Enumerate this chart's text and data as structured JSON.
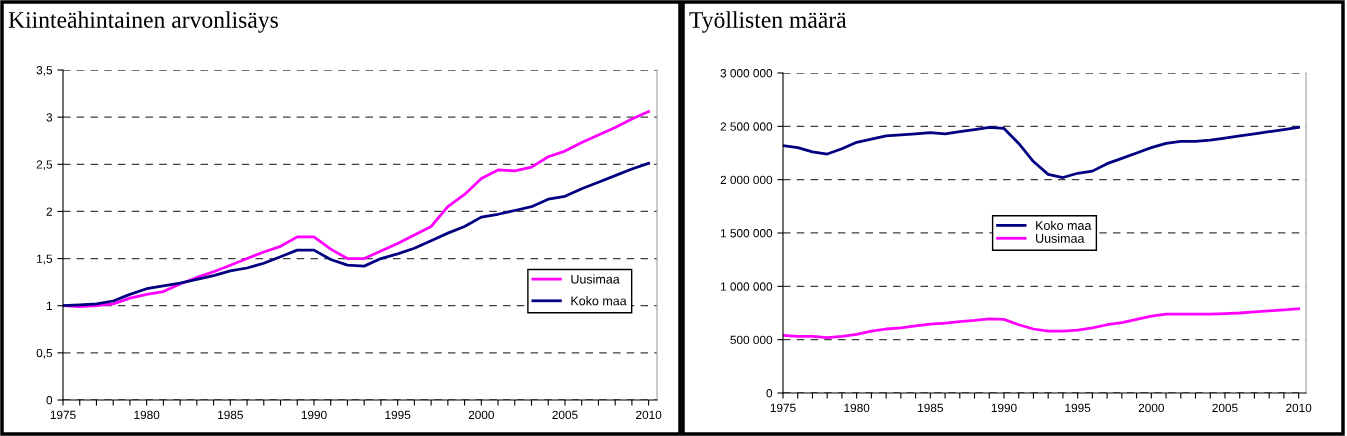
{
  "chart_data": [
    {
      "type": "line",
      "title": "Kiinteähintainen arvonlisäys",
      "categories": [
        "1975",
        null,
        null,
        null,
        null,
        "1980",
        null,
        null,
        null,
        null,
        "1985",
        null,
        null,
        null,
        null,
        "1990",
        null,
        null,
        null,
        null,
        "1995",
        null,
        null,
        null,
        null,
        "2000",
        null,
        null,
        null,
        null,
        "2005",
        null,
        null,
        null,
        null,
        "2010"
      ],
      "series": [
        {
          "name": "Uusimaa",
          "color": "#ff00ff",
          "values": [
            1.0,
            0.99,
            1.0,
            1.02,
            1.08,
            1.12,
            1.15,
            1.23,
            1.3,
            1.36,
            1.43,
            1.5,
            1.57,
            1.63,
            1.73,
            1.73,
            1.6,
            1.5,
            1.5,
            1.58,
            1.66,
            1.75,
            1.84,
            2.05,
            2.18,
            2.35,
            2.44,
            2.43,
            2.47,
            2.58,
            2.64,
            2.73,
            2.81,
            2.89,
            2.98,
            3.06
          ]
        },
        {
          "name": "Koko maa",
          "color": "#000080",
          "values": [
            1.0,
            1.01,
            1.02,
            1.05,
            1.12,
            1.18,
            1.21,
            1.24,
            1.28,
            1.32,
            1.37,
            1.4,
            1.45,
            1.52,
            1.59,
            1.59,
            1.49,
            1.43,
            1.42,
            1.5,
            1.55,
            1.61,
            1.69,
            1.77,
            1.84,
            1.94,
            1.97,
            2.01,
            2.05,
            2.13,
            2.16,
            2.24,
            2.31,
            2.38,
            2.45,
            2.51
          ]
        }
      ],
      "ylim": [
        0,
        3.5
      ],
      "yticks": [
        0,
        {
          "value": 0.5,
          "label": "0,5"
        },
        1,
        {
          "value": 1.5,
          "label": "1,5"
        },
        2,
        {
          "value": 2.5,
          "label": "2,5"
        },
        3,
        {
          "value": 3.5,
          "label": "3,5"
        }
      ],
      "grid": "y",
      "legend": "right",
      "marker": "none",
      "line_style": "solid"
    },
    {
      "type": "line",
      "title": "Työllisten määrä",
      "categories": [
        "1975",
        null,
        null,
        null,
        null,
        "1980",
        null,
        null,
        null,
        null,
        "1985",
        null,
        null,
        null,
        null,
        "1990",
        null,
        null,
        null,
        null,
        "1995",
        null,
        null,
        null,
        null,
        "2000",
        null,
        null,
        null,
        null,
        "2005",
        null,
        null,
        null,
        null,
        "2010"
      ],
      "series": [
        {
          "name": "Koko maa",
          "color": "#000080",
          "values": [
            2320000,
            2300000,
            2260000,
            2240000,
            2290000,
            2350000,
            2380000,
            2410000,
            2420000,
            2430000,
            2440000,
            2430000,
            2450000,
            2470000,
            2490000,
            2480000,
            2340000,
            2170000,
            2050000,
            2020000,
            2060000,
            2080000,
            2150000,
            2200000,
            2250000,
            2300000,
            2340000,
            2360000,
            2360000,
            2370000,
            2390000,
            2410000,
            2430000,
            2450000,
            2470000,
            2490000
          ]
        },
        {
          "name": "Uusimaa",
          "color": "#ff00ff",
          "values": [
            540000,
            530000,
            530000,
            520000,
            530000,
            550000,
            580000,
            600000,
            610000,
            630000,
            645000,
            655000,
            670000,
            680000,
            695000,
            690000,
            640000,
            600000,
            580000,
            580000,
            590000,
            610000,
            640000,
            660000,
            690000,
            720000,
            740000,
            740000,
            740000,
            740000,
            745000,
            750000,
            760000,
            770000,
            780000,
            790000
          ]
        }
      ],
      "ylim": [
        0,
        3000000
      ],
      "yticks": [
        0,
        {
          "value": 500000,
          "label": "500 000"
        },
        {
          "value": 1000000,
          "label": "1 000 000"
        },
        {
          "value": 1500000,
          "label": "1 500 000"
        },
        {
          "value": 2000000,
          "label": "2 000 000"
        },
        {
          "value": 2500000,
          "label": "2 500 000"
        },
        {
          "value": 3000000,
          "label": "3 000 000"
        }
      ],
      "grid": "y",
      "legend": "center",
      "marker": "none",
      "line_style": "solid"
    }
  ]
}
